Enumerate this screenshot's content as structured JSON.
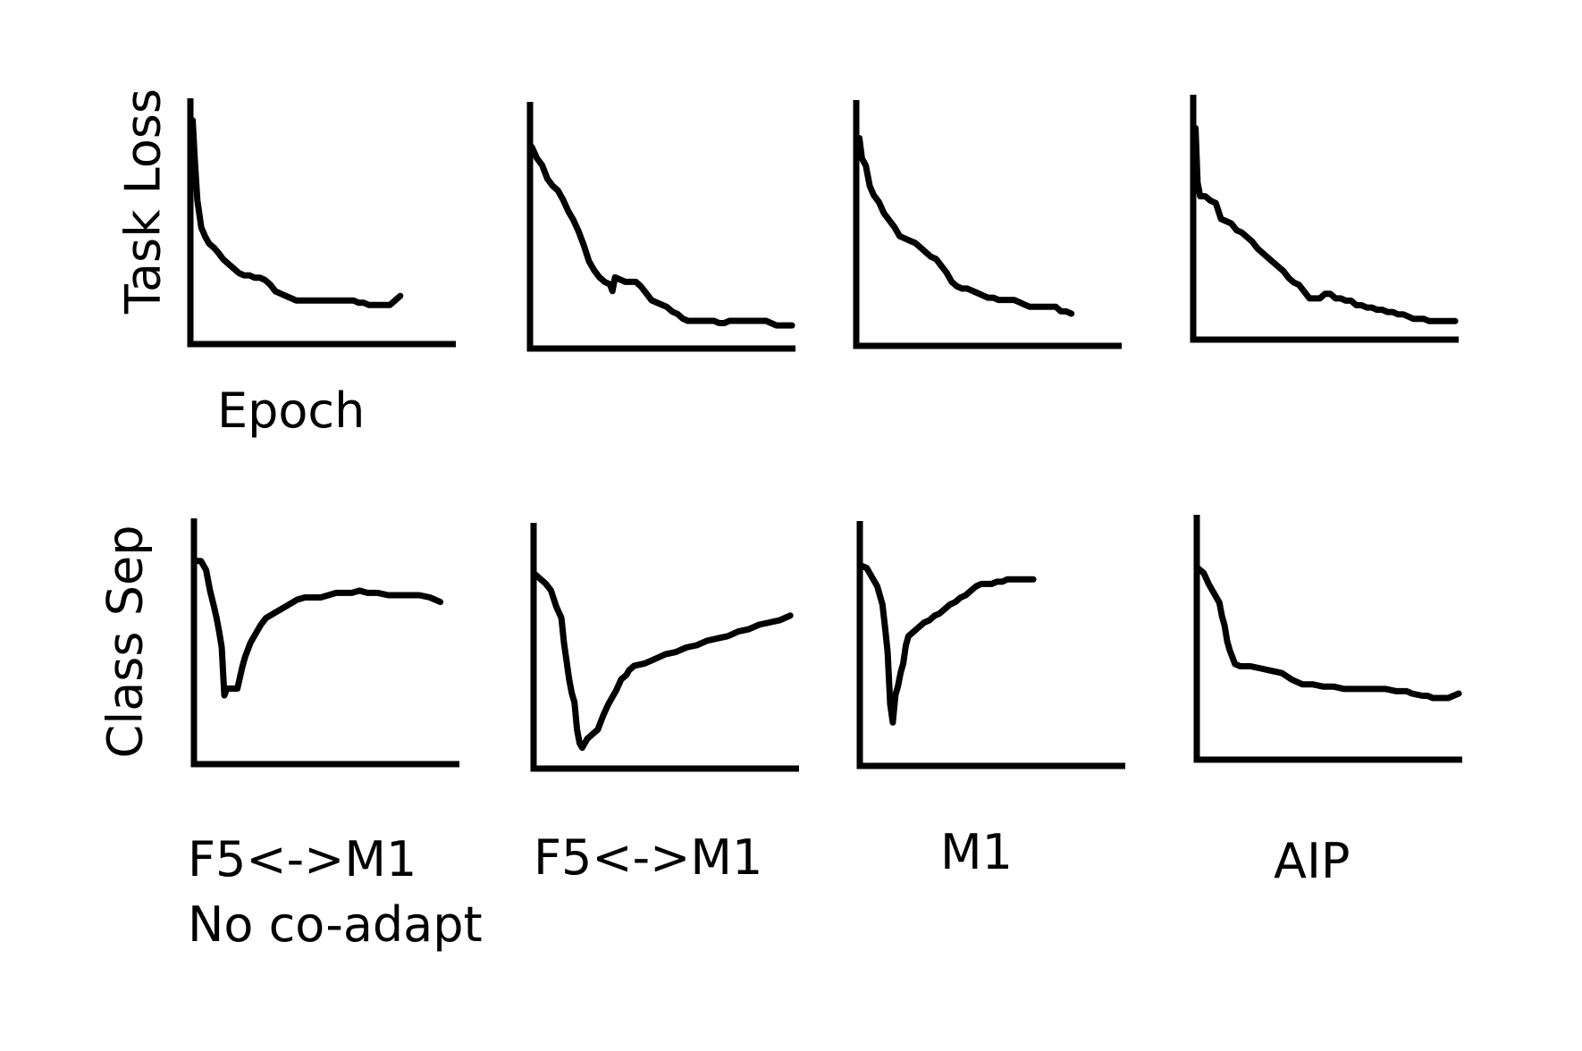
{
  "chart_data": {
    "type": "line",
    "colors": {
      "line": "#000000",
      "axis": "#000000",
      "background": "#ffffff"
    },
    "grid": false,
    "legend": "none",
    "row_labels": [
      "Task Loss",
      "Class Sep"
    ],
    "xlabel": "Epoch",
    "column_labels": [
      "F5<->M1\nNo co-adapt",
      "F5<->M1",
      "M1",
      "AIP"
    ],
    "x_normalized": [
      0,
      0.02,
      0.05,
      0.08,
      0.1,
      0.12,
      0.14,
      0.16,
      0.18,
      0.2,
      0.22,
      0.24,
      0.26,
      0.28,
      0.3,
      0.32,
      0.34,
      0.36,
      0.38,
      0.4,
      0.42,
      0.44,
      0.46,
      0.48,
      0.5,
      0.52,
      0.54,
      0.56,
      0.58,
      0.6,
      0.62,
      0.64,
      0.66,
      0.68,
      0.7,
      0.72,
      0.74,
      0.76,
      0.78,
      0.8,
      0.82,
      0.84,
      0.86,
      0.88,
      0.9,
      0.92,
      0.94,
      0.96,
      0.98,
      1.0
    ],
    "panels": [
      {
        "row": 0,
        "col": 0,
        "xlim": [
          0,
          1
        ],
        "ylim": [
          0,
          1
        ],
        "x": [
          0,
          0.002,
          0.01,
          0.02,
          0.035,
          0.05,
          0.065,
          0.085,
          0.1,
          0.12,
          0.14,
          0.16,
          0.18,
          0.2,
          0.22,
          0.24,
          0.26,
          0.28,
          0.3,
          0.32,
          0.34,
          0.36,
          0.38,
          0.4,
          0.42,
          0.44,
          0.46,
          0.48,
          0.5,
          0.52,
          0.54,
          0.56,
          0.58,
          0.6,
          0.62,
          0.64,
          0.66,
          0.68,
          0.7,
          0.72,
          0.74,
          0.76,
          0.78,
          0.8
        ],
        "y": [
          0.86,
          0.95,
          0.78,
          0.6,
          0.48,
          0.44,
          0.41,
          0.39,
          0.37,
          0.34,
          0.32,
          0.3,
          0.28,
          0.27,
          0.27,
          0.26,
          0.26,
          0.25,
          0.23,
          0.2,
          0.19,
          0.18,
          0.17,
          0.16,
          0.16,
          0.16,
          0.16,
          0.16,
          0.16,
          0.16,
          0.16,
          0.16,
          0.16,
          0.16,
          0.16,
          0.15,
          0.15,
          0.14,
          0.14,
          0.14,
          0.14,
          0.14,
          0.16,
          0.18
        ]
      },
      {
        "row": 0,
        "col": 1,
        "xlim": [
          0,
          1
        ],
        "ylim": [
          0,
          1
        ],
        "x": [
          0,
          0.02,
          0.04,
          0.06,
          0.08,
          0.1,
          0.12,
          0.14,
          0.16,
          0.18,
          0.2,
          0.22,
          0.24,
          0.26,
          0.28,
          0.3,
          0.31,
          0.32,
          0.34,
          0.36,
          0.38,
          0.4,
          0.42,
          0.44,
          0.46,
          0.48,
          0.5,
          0.52,
          0.54,
          0.56,
          0.58,
          0.6,
          0.62,
          0.64,
          0.66,
          0.68,
          0.7,
          0.72,
          0.74,
          0.76,
          0.78,
          0.8,
          0.82,
          0.84,
          0.86,
          0.88,
          0.9,
          0.92,
          0.94,
          0.96,
          0.98,
          1.0
        ],
        "y": [
          0.85,
          0.8,
          0.77,
          0.71,
          0.68,
          0.66,
          0.62,
          0.57,
          0.53,
          0.48,
          0.42,
          0.35,
          0.31,
          0.28,
          0.26,
          0.25,
          0.22,
          0.28,
          0.27,
          0.26,
          0.26,
          0.26,
          0.24,
          0.21,
          0.18,
          0.17,
          0.16,
          0.15,
          0.13,
          0.12,
          0.1,
          0.09,
          0.09,
          0.09,
          0.09,
          0.09,
          0.09,
          0.08,
          0.08,
          0.09,
          0.09,
          0.09,
          0.09,
          0.09,
          0.09,
          0.09,
          0.09,
          0.08,
          0.07,
          0.07,
          0.07,
          0.07
        ]
      },
      {
        "row": 0,
        "col": 2,
        "xlim": [
          0,
          1
        ],
        "ylim": [
          0,
          1
        ],
        "x": [
          0,
          0.005,
          0.015,
          0.03,
          0.045,
          0.06,
          0.08,
          0.1,
          0.12,
          0.14,
          0.16,
          0.18,
          0.2,
          0.22,
          0.24,
          0.26,
          0.28,
          0.3,
          0.32,
          0.34,
          0.36,
          0.38,
          0.4,
          0.42,
          0.44,
          0.46,
          0.48,
          0.5,
          0.52,
          0.54,
          0.56,
          0.58,
          0.6,
          0.62,
          0.64,
          0.66,
          0.68,
          0.7,
          0.72,
          0.74,
          0.76,
          0.78,
          0.8,
          0.82
        ],
        "y": [
          0.82,
          0.88,
          0.79,
          0.76,
          0.67,
          0.63,
          0.6,
          0.55,
          0.52,
          0.49,
          0.45,
          0.44,
          0.43,
          0.42,
          0.4,
          0.38,
          0.36,
          0.35,
          0.32,
          0.29,
          0.25,
          0.23,
          0.22,
          0.22,
          0.21,
          0.2,
          0.19,
          0.18,
          0.18,
          0.17,
          0.17,
          0.17,
          0.17,
          0.16,
          0.15,
          0.14,
          0.14,
          0.14,
          0.14,
          0.14,
          0.14,
          0.12,
          0.12,
          0.11
        ]
      },
      {
        "row": 0,
        "col": 3,
        "xlim": [
          0,
          1
        ],
        "ylim": [
          0,
          1
        ],
        "x": [
          0,
          0.002,
          0.01,
          0.02,
          0.04,
          0.06,
          0.08,
          0.1,
          0.12,
          0.14,
          0.16,
          0.18,
          0.2,
          0.22,
          0.24,
          0.26,
          0.28,
          0.3,
          0.32,
          0.34,
          0.36,
          0.38,
          0.4,
          0.42,
          0.44,
          0.46,
          0.48,
          0.5,
          0.52,
          0.54,
          0.56,
          0.58,
          0.6,
          0.62,
          0.64,
          0.66,
          0.68,
          0.7,
          0.72,
          0.74,
          0.76,
          0.78,
          0.8,
          0.82,
          0.84,
          0.86,
          0.88,
          0.9,
          0.92,
          0.94,
          0.96,
          0.98,
          1.0
        ],
        "y": [
          0.66,
          0.9,
          0.66,
          0.6,
          0.6,
          0.58,
          0.57,
          0.5,
          0.49,
          0.48,
          0.45,
          0.44,
          0.42,
          0.4,
          0.37,
          0.35,
          0.33,
          0.31,
          0.29,
          0.27,
          0.24,
          0.22,
          0.21,
          0.18,
          0.15,
          0.15,
          0.15,
          0.17,
          0.17,
          0.15,
          0.15,
          0.14,
          0.14,
          0.12,
          0.12,
          0.11,
          0.11,
          0.1,
          0.1,
          0.09,
          0.09,
          0.08,
          0.08,
          0.07,
          0.06,
          0.06,
          0.06,
          0.05,
          0.05,
          0.05,
          0.05,
          0.05,
          0.05
        ]
      },
      {
        "row": 1,
        "col": 0,
        "xlim": [
          0,
          1
        ],
        "ylim": [
          0,
          1
        ],
        "x": [
          0,
          0.02,
          0.04,
          0.055,
          0.07,
          0.08,
          0.09,
          0.1,
          0.11,
          0.12,
          0.13,
          0.145,
          0.16,
          0.18,
          0.19,
          0.21,
          0.23,
          0.25,
          0.27,
          0.3,
          0.33,
          0.36,
          0.39,
          0.42,
          0.45,
          0.48,
          0.51,
          0.54,
          0.57,
          0.6,
          0.63,
          0.66,
          0.7,
          0.74,
          0.78,
          0.82,
          0.86,
          0.9,
          0.94
        ],
        "y": [
          0.86,
          0.86,
          0.82,
          0.73,
          0.66,
          0.61,
          0.55,
          0.48,
          0.27,
          0.3,
          0.3,
          0.3,
          0.3,
          0.4,
          0.44,
          0.5,
          0.54,
          0.58,
          0.61,
          0.63,
          0.65,
          0.67,
          0.69,
          0.7,
          0.7,
          0.7,
          0.71,
          0.72,
          0.72,
          0.72,
          0.73,
          0.72,
          0.72,
          0.71,
          0.71,
          0.71,
          0.71,
          0.7,
          0.68
        ]
      },
      {
        "row": 1,
        "col": 1,
        "xlim": [
          0,
          1
        ],
        "ylim": [
          0,
          1
        ],
        "x": [
          0,
          0.02,
          0.04,
          0.06,
          0.08,
          0.1,
          0.11,
          0.12,
          0.13,
          0.14,
          0.15,
          0.16,
          0.17,
          0.18,
          0.19,
          0.2,
          0.21,
          0.22,
          0.24,
          0.26,
          0.28,
          0.29,
          0.3,
          0.31,
          0.33,
          0.35,
          0.36,
          0.38,
          0.42,
          0.46,
          0.5,
          0.54,
          0.58,
          0.62,
          0.66,
          0.7,
          0.74,
          0.78,
          0.82,
          0.86,
          0.9,
          0.94,
          0.96,
          0.98
        ],
        "y": [
          0.82,
          0.8,
          0.78,
          0.75,
          0.68,
          0.63,
          0.52,
          0.44,
          0.36,
          0.3,
          0.26,
          0.14,
          0.08,
          0.06,
          0.08,
          0.1,
          0.11,
          0.12,
          0.14,
          0.2,
          0.25,
          0.27,
          0.29,
          0.31,
          0.36,
          0.38,
          0.4,
          0.42,
          0.43,
          0.45,
          0.47,
          0.48,
          0.5,
          0.51,
          0.53,
          0.54,
          0.55,
          0.57,
          0.58,
          0.6,
          0.61,
          0.62,
          0.63,
          0.64
        ]
      },
      {
        "row": 1,
        "col": 2,
        "xlim": [
          0,
          1
        ],
        "ylim": [
          0,
          1
        ],
        "x": [
          0,
          0.02,
          0.04,
          0.06,
          0.08,
          0.09,
          0.1,
          0.11,
          0.12,
          0.13,
          0.14,
          0.15,
          0.16,
          0.17,
          0.18,
          0.2,
          0.22,
          0.24,
          0.26,
          0.28,
          0.3,
          0.32,
          0.34,
          0.36,
          0.38,
          0.4,
          0.42,
          0.44,
          0.46,
          0.48,
          0.5,
          0.52,
          0.54,
          0.56,
          0.58,
          0.6,
          0.62,
          0.64,
          0.66
        ],
        "y": [
          0.85,
          0.84,
          0.8,
          0.76,
          0.68,
          0.58,
          0.47,
          0.24,
          0.16,
          0.28,
          0.32,
          0.38,
          0.42,
          0.5,
          0.54,
          0.56,
          0.58,
          0.6,
          0.61,
          0.63,
          0.64,
          0.66,
          0.68,
          0.69,
          0.71,
          0.72,
          0.74,
          0.76,
          0.77,
          0.77,
          0.77,
          0.78,
          0.78,
          0.79,
          0.79,
          0.79,
          0.79,
          0.79,
          0.79
        ]
      },
      {
        "row": 1,
        "col": 3,
        "xlim": [
          0,
          1
        ],
        "ylim": [
          0,
          1
        ],
        "x": [
          0,
          0.02,
          0.04,
          0.06,
          0.08,
          0.09,
          0.1,
          0.11,
          0.12,
          0.13,
          0.14,
          0.16,
          0.18,
          0.2,
          0.24,
          0.28,
          0.32,
          0.36,
          0.4,
          0.42,
          0.44,
          0.48,
          0.52,
          0.56,
          0.6,
          0.64,
          0.68,
          0.72,
          0.76,
          0.8,
          0.82,
          0.86,
          0.88,
          0.9,
          0.92,
          0.94,
          0.96,
          0.98,
          1.0
        ],
        "y": [
          0.81,
          0.79,
          0.74,
          0.7,
          0.66,
          0.6,
          0.56,
          0.49,
          0.45,
          0.42,
          0.39,
          0.38,
          0.38,
          0.38,
          0.37,
          0.36,
          0.35,
          0.32,
          0.3,
          0.3,
          0.3,
          0.29,
          0.29,
          0.28,
          0.28,
          0.28,
          0.28,
          0.28,
          0.27,
          0.27,
          0.26,
          0.25,
          0.25,
          0.24,
          0.24,
          0.24,
          0.24,
          0.25,
          0.26
        ]
      }
    ]
  }
}
